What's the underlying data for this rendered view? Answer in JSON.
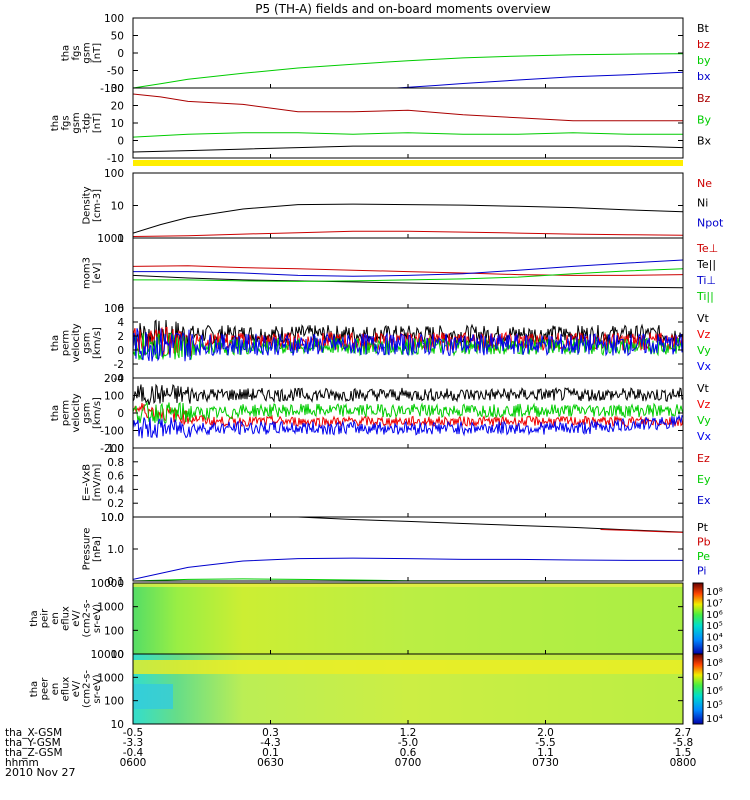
{
  "title": "P5 (TH-A) fields and on-board moments overview",
  "date_label": "2010 Nov 27",
  "chart_data": [
    {
      "type": "line",
      "ylabel_lines": [
        "tha",
        "fgs",
        "gsm",
        "[nT]"
      ],
      "yticks": [
        "100",
        "50",
        "0",
        "-50",
        "-100"
      ],
      "ylim": [
        -100,
        100
      ],
      "series": [
        {
          "name": "Bt",
          "color": "#000000",
          "x": [
            0,
            0.1,
            0.2,
            0.35,
            0.5,
            0.65,
            0.8,
            1
          ],
          "y": [
            -100,
            -100,
            -100,
            -100,
            -100,
            -100,
            -100,
            -100
          ]
        },
        {
          "name": "bz",
          "color": "#cc0000",
          "x": [
            0,
            1
          ],
          "y": [
            -100,
            -100
          ]
        },
        {
          "name": "by",
          "color": "#00cc00",
          "x": [
            0,
            0.05,
            0.1,
            0.2,
            0.3,
            0.4,
            0.5,
            0.6,
            0.7,
            0.8,
            0.9,
            1
          ],
          "y": [
            -100,
            -88,
            -75,
            -58,
            -43,
            -32,
            -22,
            -14,
            -9,
            -5,
            -3,
            -2
          ]
        },
        {
          "name": "bx",
          "color": "#0000cc",
          "x": [
            0.48,
            0.55,
            0.6,
            0.7,
            0.8,
            0.9,
            1
          ],
          "y": [
            -100,
            -93,
            -87,
            -77,
            -68,
            -62,
            -55
          ]
        }
      ]
    },
    {
      "type": "line",
      "ylabel_lines": [
        "tha",
        "fgs",
        "gsm",
        "-tdp",
        "[nT]"
      ],
      "yticks": [
        "30",
        "20",
        "10",
        "0",
        "-10"
      ],
      "ylim": [
        -15,
        32
      ],
      "series": [
        {
          "name": "Bz",
          "color": "#aa0000",
          "x": [
            0,
            0.05,
            0.1,
            0.2,
            0.3,
            0.4,
            0.5,
            0.6,
            0.7,
            0.8,
            0.9,
            1
          ],
          "y": [
            28,
            26,
            23,
            21,
            16,
            16,
            17,
            14,
            12,
            10,
            10,
            10
          ]
        },
        {
          "name": "By",
          "color": "#00cc00",
          "x": [
            0,
            0.1,
            0.2,
            0.3,
            0.4,
            0.5,
            0.6,
            0.7,
            0.8,
            0.9,
            1
          ],
          "y": [
            -1,
            1,
            2,
            2,
            1,
            2,
            1,
            1,
            2,
            1,
            1
          ]
        },
        {
          "name": "Bx",
          "color": "#000000",
          "x": [
            0,
            0.1,
            0.2,
            0.3,
            0.4,
            0.5,
            0.6,
            0.7,
            0.8,
            0.9,
            1
          ],
          "y": [
            -11,
            -10,
            -9,
            -8,
            -7,
            -7,
            -7,
            -7,
            -7,
            -7,
            -8
          ]
        }
      ]
    },
    {
      "type": "line",
      "log": true,
      "ylabel_lines": [
        "Density",
        "[cm-3]"
      ],
      "yticks": [
        "100",
        "10",
        "1"
      ],
      "ylim": [
        0.3,
        250
      ],
      "series": [
        {
          "name": "Ne",
          "color": "#cc0000",
          "x": [
            0,
            0.1,
            0.2,
            0.3,
            0.4,
            0.5,
            0.6,
            0.7,
            0.8,
            0.9,
            1
          ],
          "y": [
            0.35,
            0.38,
            0.45,
            0.52,
            0.6,
            0.6,
            0.55,
            0.5,
            0.45,
            0.42,
            0.4
          ]
        },
        {
          "name": "Ni",
          "color": "#000000",
          "x": [
            0,
            0.05,
            0.1,
            0.2,
            0.3,
            0.4,
            0.5,
            0.6,
            0.7,
            0.8,
            0.9,
            1
          ],
          "y": [
            0.5,
            1.2,
            2.5,
            6,
            9.5,
            10,
            9.5,
            9,
            8,
            7,
            5.5,
            4.5
          ]
        },
        {
          "name": "Npot",
          "color": "#0000cc",
          "x": [
            0,
            1
          ],
          "y": [
            0.3,
            0.3
          ]
        }
      ]
    },
    {
      "type": "line",
      "log": true,
      "ylabel_lines": [
        "mom3",
        "[eV]"
      ],
      "yticks": [
        "1000",
        "100"
      ],
      "ylim": [
        100,
        1300
      ],
      "series": [
        {
          "name": "Te⊥",
          "color": "#cc0000",
          "x": [
            0,
            0.1,
            0.2,
            0.3,
            0.4,
            0.5,
            0.6,
            0.7,
            0.8,
            0.9,
            1
          ],
          "y": [
            460,
            470,
            440,
            420,
            400,
            380,
            360,
            340,
            330,
            330,
            340
          ]
        },
        {
          "name": "Te||",
          "color": "#000000",
          "x": [
            0,
            0.1,
            0.2,
            0.3,
            0.4,
            0.5,
            0.6,
            0.7,
            0.8,
            0.9,
            1
          ],
          "y": [
            330,
            300,
            280,
            270,
            260,
            250,
            240,
            230,
            220,
            215,
            210
          ]
        },
        {
          "name": "Ti⊥",
          "color": "#0000cc",
          "x": [
            0,
            0.1,
            0.2,
            0.3,
            0.4,
            0.5,
            0.6,
            0.7,
            0.8,
            0.9,
            1
          ],
          "y": [
            380,
            380,
            360,
            330,
            320,
            330,
            350,
            400,
            460,
            520,
            580
          ]
        },
        {
          "name": "Ti||",
          "color": "#00cc00",
          "x": [
            0,
            0.1,
            0.2,
            0.3,
            0.4,
            0.5,
            0.6,
            0.7,
            0.8,
            0.9,
            1
          ],
          "y": [
            280,
            280,
            270,
            265,
            270,
            280,
            290,
            310,
            350,
            390,
            420
          ]
        }
      ]
    },
    {
      "type": "line",
      "noisy": true,
      "ylabel_lines": [
        "tha",
        "perm",
        "velocity",
        "gsm",
        "[km/s]"
      ],
      "yticks": [
        "6",
        "4",
        "2",
        "0",
        "-2",
        "-4"
      ],
      "ylim": [
        -5,
        6.5
      ],
      "series": [
        {
          "name": "Vt",
          "color": "#000000",
          "base": 2.2,
          "amp": 1.5
        },
        {
          "name": "Vz",
          "color": "#ee0000",
          "base": 1.0,
          "amp": 1.5
        },
        {
          "name": "Vy",
          "color": "#00cc00",
          "base": 0.2,
          "amp": 1.4
        },
        {
          "name": "Vx",
          "color": "#0000ee",
          "base": 0.5,
          "amp": 1.8
        }
      ]
    },
    {
      "type": "line",
      "noisy": true,
      "ylabel_lines": [
        "tha",
        "perm",
        "velocity",
        "gsm",
        "[km/s]"
      ],
      "yticks": [
        "200",
        "100",
        "0",
        "-100",
        "-200"
      ],
      "ylim": [
        -200,
        220
      ],
      "series": [
        {
          "name": "Vt",
          "color": "#000000",
          "base": 120,
          "amp": 40
        },
        {
          "name": "Vz",
          "color": "#ee0000",
          "base": -40,
          "amp": 30
        },
        {
          "name": "Vy",
          "color": "#00cc00",
          "base": 10,
          "amp": 40
        },
        {
          "name": "Vx",
          "color": "#0000ee",
          "base": -80,
          "amp": 40
        }
      ]
    },
    {
      "type": "line",
      "ylabel_lines": [
        "E=-VxB",
        "[mV/m]"
      ],
      "yticks": [
        "1.0",
        "0.8",
        "0.6",
        "0.4",
        "0.2",
        "0.0"
      ],
      "ylim": [
        0,
        1
      ],
      "series": [
        {
          "name": "Ez",
          "color": "#cc0000",
          "x": [],
          "y": []
        },
        {
          "name": "Ey",
          "color": "#00cc00",
          "x": [],
          "y": []
        },
        {
          "name": "Ex",
          "color": "#0000cc",
          "x": [],
          "y": []
        }
      ]
    },
    {
      "type": "line",
      "log": true,
      "ylabel_lines": [
        "Pressure",
        "[nPa]"
      ],
      "yticks": [
        "10.0",
        "1.0",
        "0.1"
      ],
      "ylim": [
        0.025,
        40
      ],
      "series": [
        {
          "name": "Pt",
          "color": "#000000",
          "x": [
            0.3,
            0.4,
            0.5,
            0.6,
            0.7,
            0.8,
            0.9,
            1
          ],
          "y": [
            40,
            30,
            24,
            19,
            15,
            12,
            9,
            7
          ]
        },
        {
          "name": "Pb",
          "color": "#cc0000",
          "x": [
            0.85,
            0.9,
            0.95,
            1
          ],
          "y": [
            9.5,
            8.5,
            7.5,
            6.8
          ]
        },
        {
          "name": "Pe",
          "color": "#00cc00",
          "x": [
            0,
            0.1,
            0.2,
            0.3,
            0.4,
            0.5,
            1
          ],
          "y": [
            0.025,
            0.03,
            0.032,
            0.03,
            0.028,
            0.026,
            0.025
          ]
        },
        {
          "name": "Pi",
          "color": "#0000cc",
          "x": [
            0,
            0.05,
            0.1,
            0.2,
            0.3,
            0.4,
            0.5,
            0.6,
            0.7,
            0.8,
            0.9,
            1
          ],
          "y": [
            0.03,
            0.06,
            0.12,
            0.25,
            0.33,
            0.35,
            0.33,
            0.3,
            0.3,
            0.28,
            0.27,
            0.27
          ]
        }
      ]
    },
    {
      "type": "heatmap",
      "ylabel_lines": [
        "tha",
        "peir",
        "en",
        "eflux",
        "eV/",
        "(cm2-s-",
        "sr-eV)"
      ],
      "yticks": [
        "10000",
        "1000",
        "100",
        "10"
      ],
      "colorbar_ticks": [
        "10⁸",
        "10⁷",
        "10⁶",
        "10⁵",
        "10⁴",
        "10³"
      ]
    },
    {
      "type": "heatmap",
      "ylabel_lines": [
        "tha",
        "peer",
        "en",
        "eflux",
        "eV/",
        "(cm2-s-",
        "sr-eV)"
      ],
      "yticks": [
        "10000",
        "1000",
        "100",
        "10"
      ],
      "colorbar_ticks": [
        "10⁸",
        "10⁷",
        "10⁶",
        "10⁵",
        "10⁴"
      ]
    }
  ],
  "xaxis": {
    "rows": [
      {
        "label": "tha_X-GSM",
        "values": [
          "-0.5",
          "0.3",
          "1.2",
          "2.0",
          "2.7"
        ]
      },
      {
        "label": "tha_Y-GSM",
        "values": [
          "-3.3",
          "-4.3",
          "-5.0",
          "-5.5",
          "-5.8"
        ]
      },
      {
        "label": "tha_Z-GSM",
        "values": [
          "-0.4",
          "0.1",
          "0.6",
          "1.1",
          "1.5"
        ]
      },
      {
        "label": "hhmm",
        "values": [
          "0600",
          "0630",
          "0700",
          "0730",
          "0800"
        ]
      }
    ]
  }
}
